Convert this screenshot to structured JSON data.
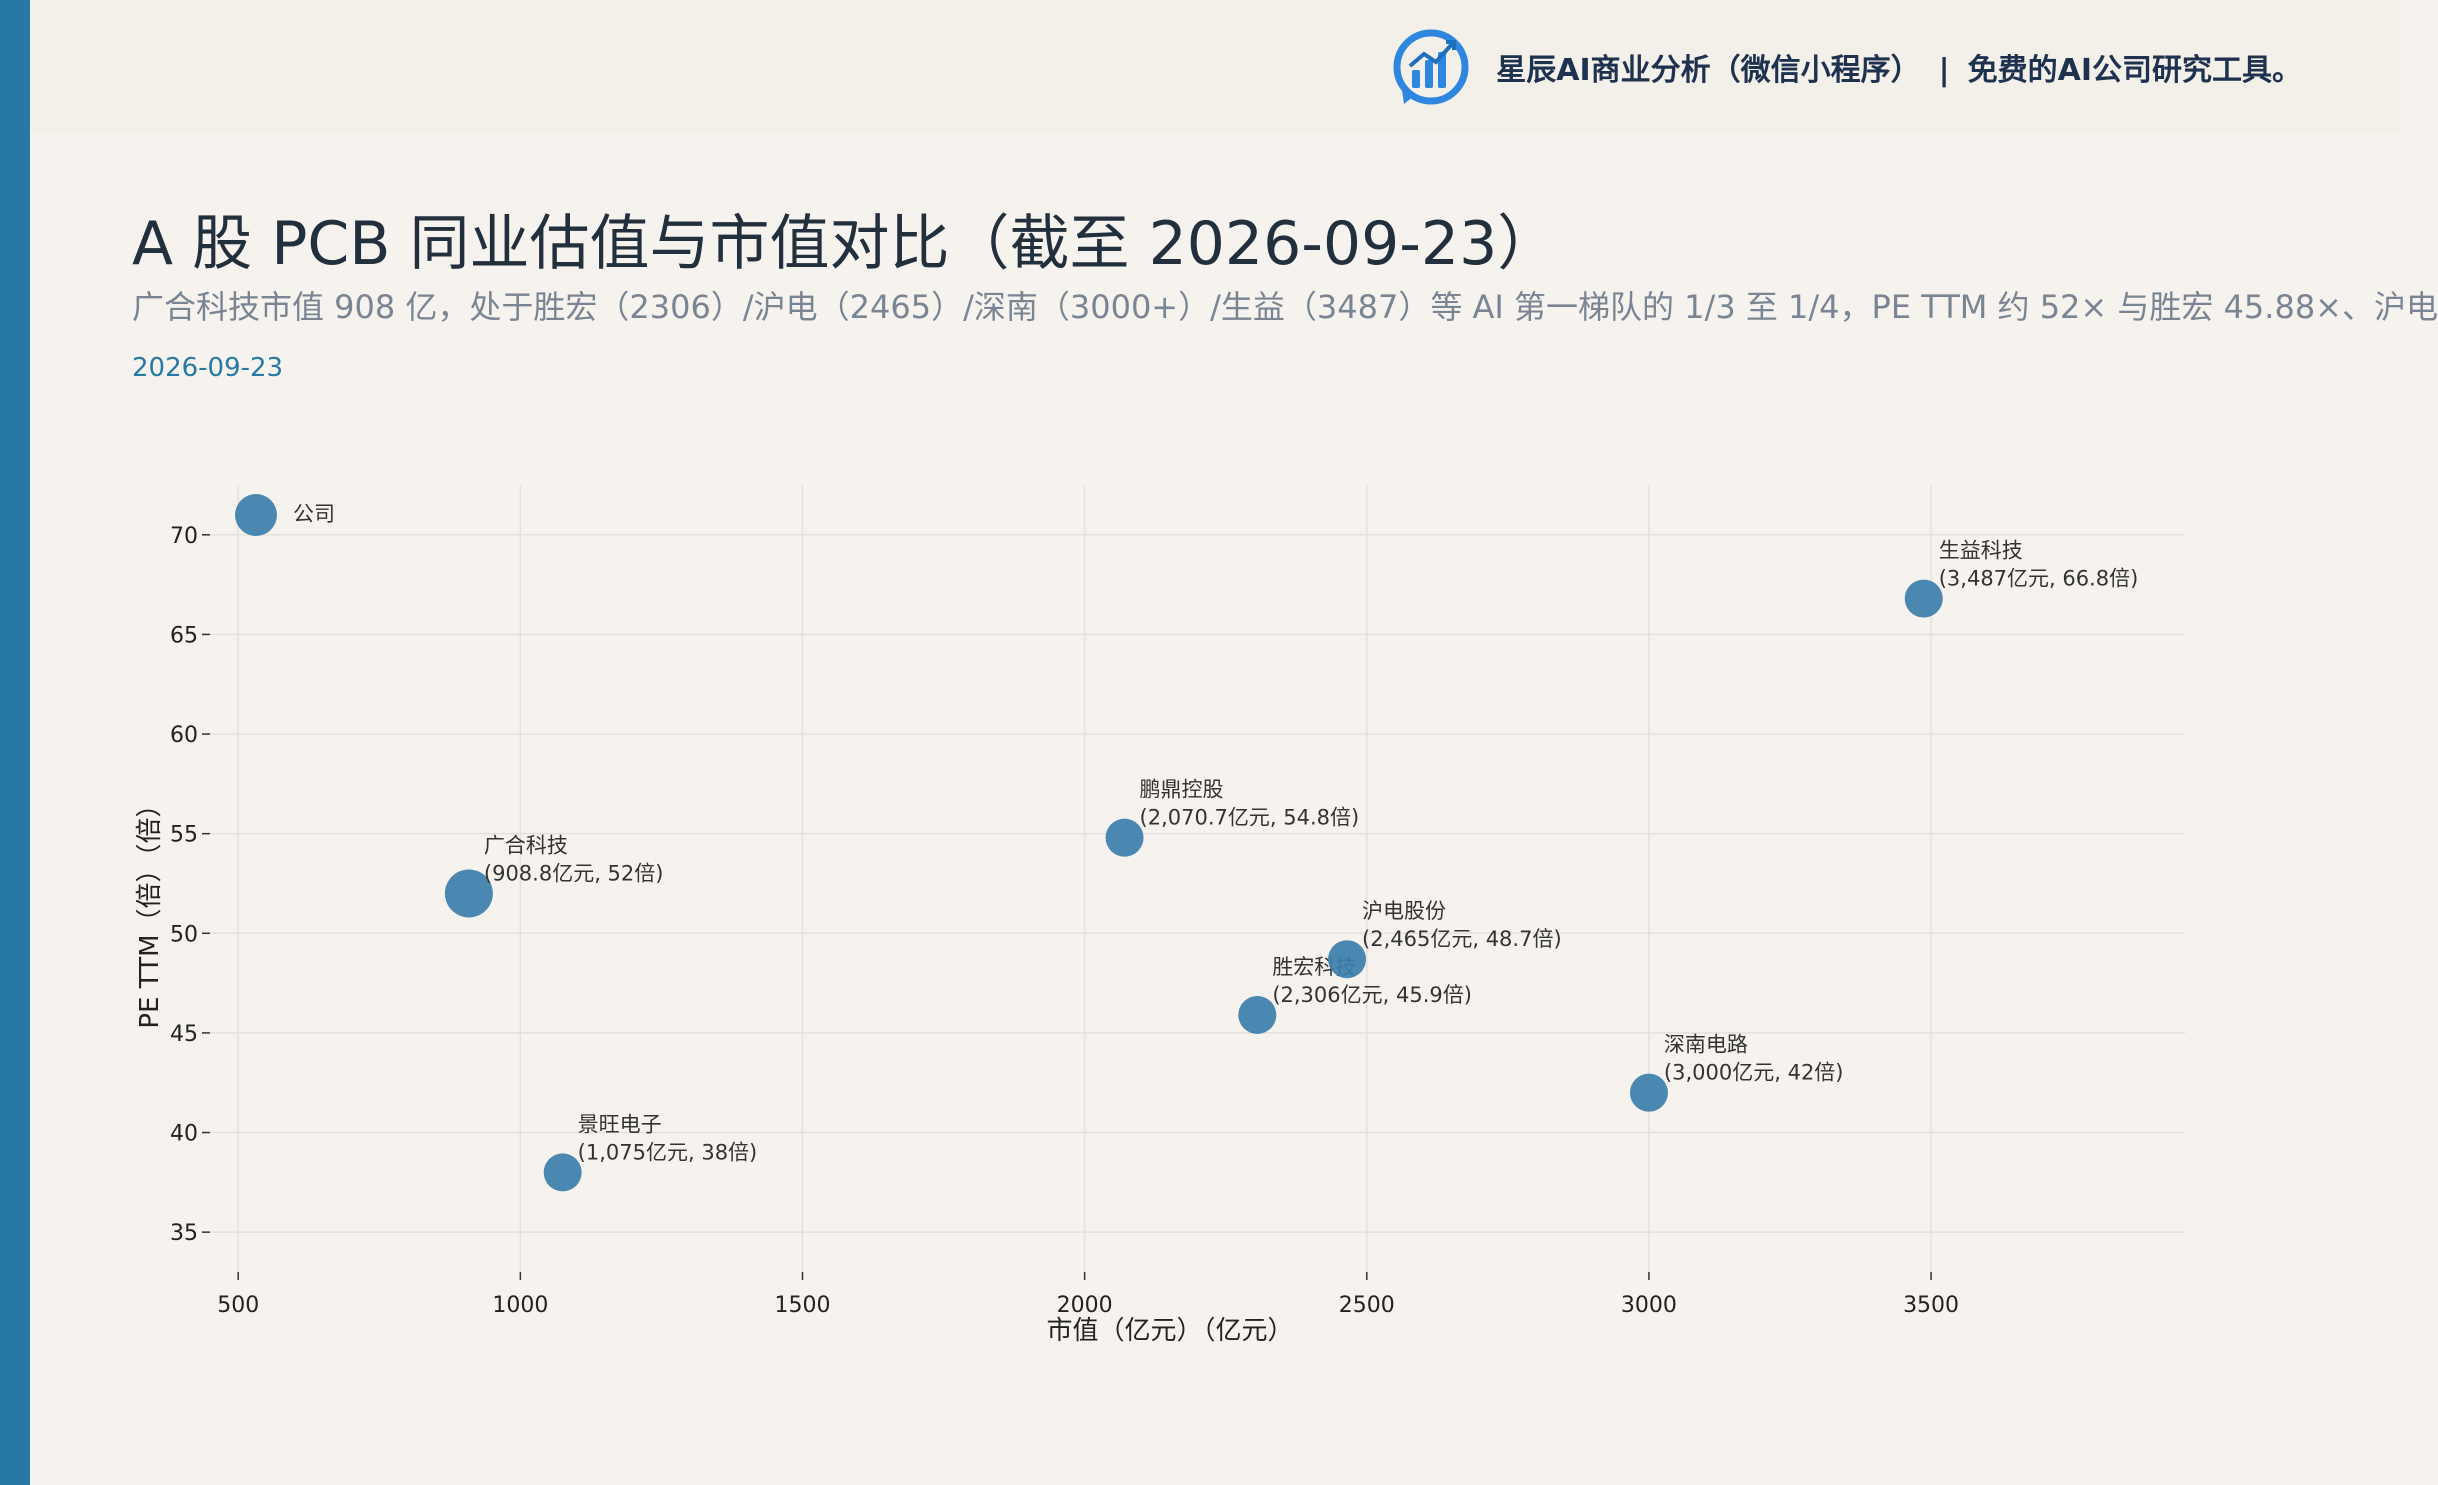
{
  "brand": {
    "name": "星辰AI商业分析（微信小程序）",
    "separator": "|",
    "slogan": "免费的AI公司研究工具。"
  },
  "header": {
    "title": "A 股 PCB 同业估值与市值对比（截至 2026-09-23）",
    "subtitle": "广合科技市值 908 亿，处于胜宏（2306）/沪电（2465）/深南（3000+）/生益（3487）等 AI 第一梯队的 1/3 至 1/4，PE TTM 约 52× 与胜宏 45.88×、沪电",
    "date": "2026-09-23"
  },
  "colors": {
    "accent": "#2878a6",
    "point": "#3b7fab",
    "grid": "#e4e1dc"
  },
  "chart_data": {
    "type": "scatter",
    "xlabel": "市值（亿元）（亿元）",
    "ylabel": "PE TTM（倍）（倍）",
    "xlim": [
      450,
      3950
    ],
    "ylim": [
      33,
      72.5
    ],
    "xticks": [
      500,
      1000,
      1500,
      2000,
      2500,
      3000,
      3500
    ],
    "yticks": [
      35,
      40,
      45,
      50,
      55,
      60,
      65,
      70
    ],
    "grid": true,
    "points": [
      {
        "name": "广合科技",
        "x": 908.8,
        "y": 52,
        "label": "(908.8亿元, 52倍)",
        "highlight": true
      },
      {
        "name": "景旺电子",
        "x": 1075,
        "y": 38,
        "label": "(1,075亿元, 38倍)"
      },
      {
        "name": "鹏鼎控股",
        "x": 2070.7,
        "y": 54.8,
        "label": "(2,070.7亿元, 54.8倍)"
      },
      {
        "name": "胜宏科技",
        "x": 2306,
        "y": 45.9,
        "label": "(2,306亿元, 45.9倍)"
      },
      {
        "name": "沪电股份",
        "x": 2465,
        "y": 48.7,
        "label": "(2,465亿元, 48.7倍)"
      },
      {
        "name": "深南电路",
        "x": 3000,
        "y": 42,
        "label": "(3,000亿元, 42倍)"
      },
      {
        "name": "生益科技",
        "x": 3487,
        "y": 66.8,
        "label": "(3,487亿元, 66.8倍)"
      }
    ],
    "legend": {
      "label": "公司",
      "placement": "top-left"
    }
  }
}
